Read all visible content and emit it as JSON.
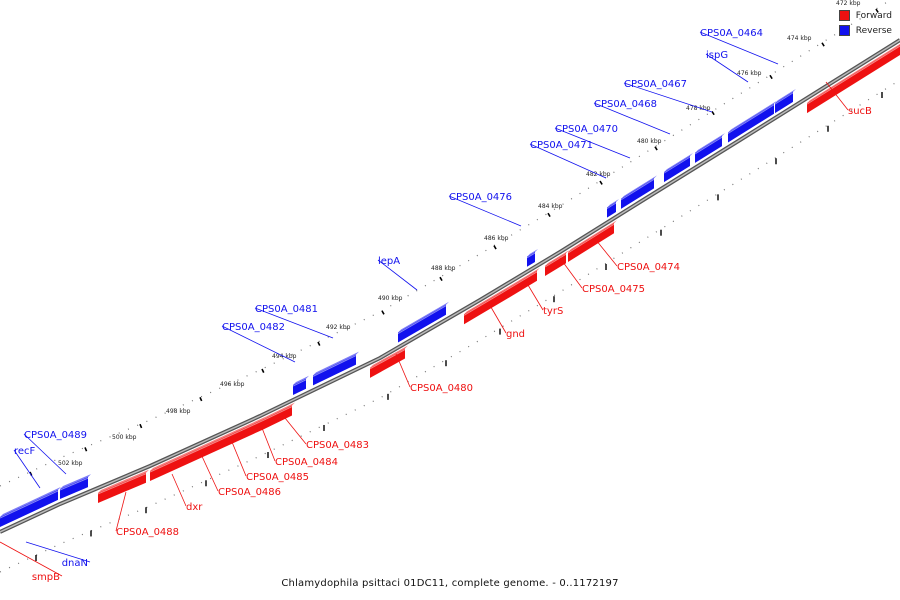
{
  "caption": "Chlamydophila psittaci 01DC11, complete genome. - 0..1172197",
  "legend": [
    {
      "label": "Forward",
      "color": "#ee1111"
    },
    {
      "label": "Reverse",
      "color": "#1111ee"
    }
  ],
  "colors": {
    "forward": "#ee1111",
    "reverse": "#1111ee",
    "backbone": "#888888"
  },
  "ticks": [
    "472 kbp",
    "474 kbp",
    "476 kbp",
    "478 kbp",
    "480 kbp",
    "482 kbp",
    "484 kbp",
    "486 kbp",
    "488 kbp",
    "490 kbp",
    "492 kbp",
    "494 kbp",
    "496 kbp",
    "498 kbp",
    "500 kbp",
    "502 kbp"
  ],
  "reverse_genes": [
    "CPS0A_0464",
    "ispG",
    "CPS0A_0467",
    "CPS0A_0468",
    "CPS0A_0470",
    "CPS0A_0471",
    "CPS0A_0476",
    "lepA",
    "CPS0A_0481",
    "CPS0A_0482",
    "CPS0A_0489",
    "recF",
    "dnaN"
  ],
  "forward_genes": [
    "sucB",
    "CPS0A_0474",
    "CPS0A_0475",
    "tyrS",
    "gnd",
    "CPS0A_0480",
    "CPS0A_0483",
    "CPS0A_0484",
    "CPS0A_0485",
    "CPS0A_0486",
    "dxr",
    "CPS0A_0488",
    "smpB"
  ]
}
